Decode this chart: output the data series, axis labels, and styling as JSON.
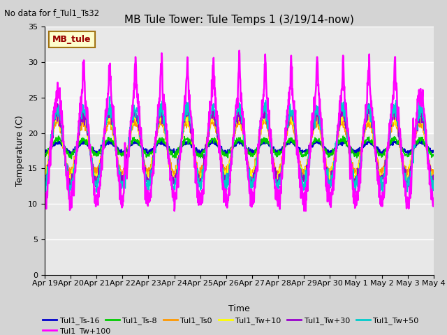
{
  "title": "MB Tule Tower: Tule Temps 1 (3/19/14-now)",
  "no_data_text": "No data for f_Tul1_Ts32",
  "ylabel": "Temperature (C)",
  "xlabel": "Time",
  "ylim": [
    0,
    35
  ],
  "yticks": [
    0,
    5,
    10,
    15,
    20,
    25,
    30,
    35
  ],
  "date_labels": [
    "Apr 19",
    "Apr 20",
    "Apr 21",
    "Apr 22",
    "Apr 23",
    "Apr 24",
    "Apr 25",
    "Apr 26",
    "Apr 27",
    "Apr 28",
    "Apr 29",
    "Apr 30",
    "May 1",
    "May 2",
    "May 3",
    "May 4"
  ],
  "legend_label": "MB_tule",
  "series_labels": [
    "Tul1_Ts-16",
    "Tul1_Ts-8",
    "Tul1_Ts0",
    "Tul1_Tw+10",
    "Tul1_Tw+30",
    "Tul1_Tw+50",
    "Tul1_Tw+100"
  ],
  "series_colors": [
    "#0000cc",
    "#00cc00",
    "#ff9900",
    "#ffff00",
    "#9900cc",
    "#00cccc",
    "#ff00ff"
  ],
  "fig_bg": "#d4d4d4",
  "plot_bg": "#e8e8e8",
  "shaded_band": [
    20,
    30
  ],
  "title_fontsize": 11,
  "axis_fontsize": 8,
  "label_fontsize": 9
}
